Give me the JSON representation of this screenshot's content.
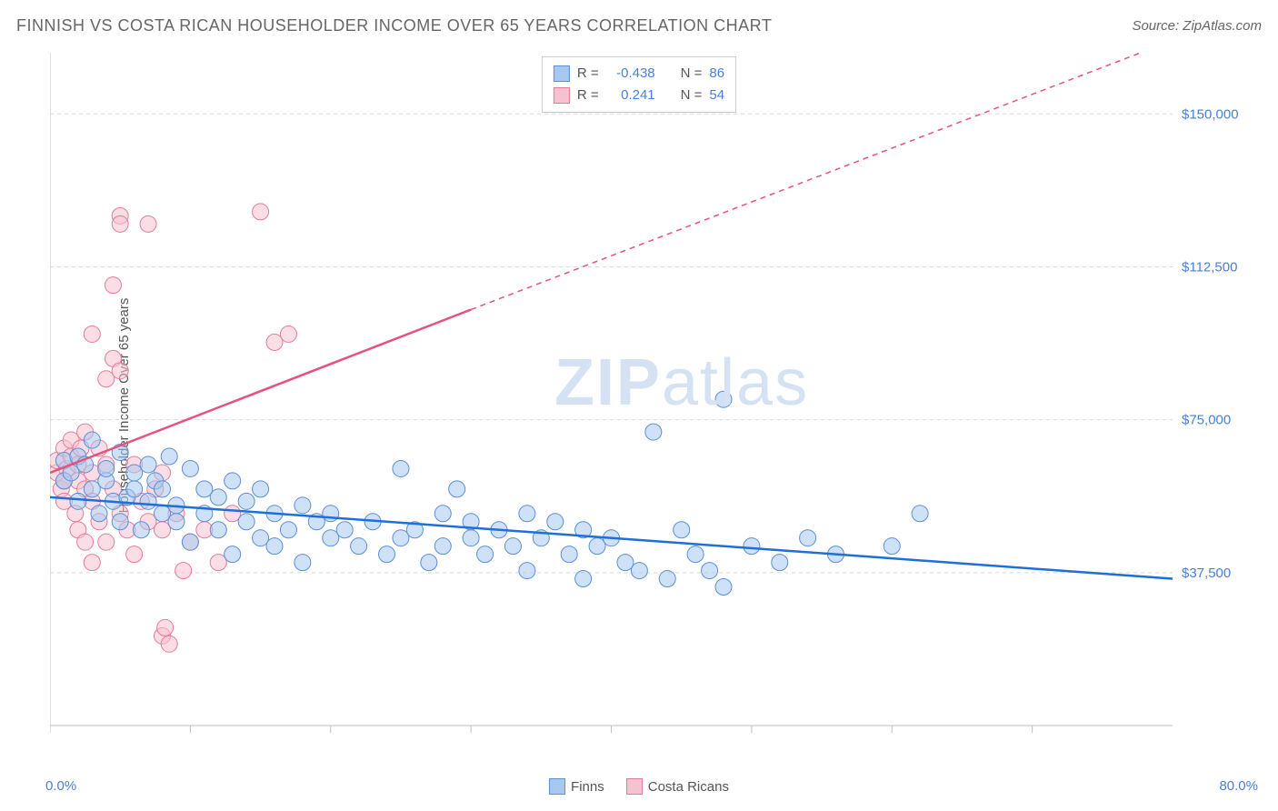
{
  "title": "FINNISH VS COSTA RICAN HOUSEHOLDER INCOME OVER 65 YEARS CORRELATION CHART",
  "source": "Source: ZipAtlas.com",
  "y_axis_label": "Householder Income Over 65 years",
  "watermark": {
    "zip": "ZIP",
    "atlas": "atlas"
  },
  "chart": {
    "type": "scatter",
    "xlim": [
      0,
      80
    ],
    "ylim": [
      0,
      165000
    ],
    "x_ticks": [
      0,
      10,
      20,
      30,
      40,
      50,
      60,
      70
    ],
    "x_tick_labels_shown": {
      "0": "0.0%",
      "80": "80.0%"
    },
    "y_ticks": [
      37500,
      75000,
      112500,
      150000
    ],
    "y_tick_labels": [
      "$37,500",
      "$75,000",
      "$112,500",
      "$150,000"
    ],
    "grid_color": "#d8d8d8",
    "axis_color": "#bfbfbf",
    "background_color": "#ffffff",
    "marker_radius": 9,
    "marker_opacity": 0.55,
    "line_width": 2.5
  },
  "series": {
    "finns": {
      "label": "Finns",
      "marker_fill": "#a8c8f0",
      "marker_stroke": "#5b8fd6",
      "line_color": "#1f6fd8",
      "R": "-0.438",
      "N": "86",
      "trend": {
        "x1": 0,
        "y1": 56000,
        "x2": 80,
        "y2": 36000
      },
      "points": [
        [
          1,
          65000
        ],
        [
          1,
          60000
        ],
        [
          1.5,
          62000
        ],
        [
          2,
          66000
        ],
        [
          2,
          55000
        ],
        [
          2.5,
          64000
        ],
        [
          3,
          58000
        ],
        [
          3,
          70000
        ],
        [
          3.5,
          52000
        ],
        [
          4,
          60000
        ],
        [
          4,
          63000
        ],
        [
          4.5,
          55000
        ],
        [
          5,
          67000
        ],
        [
          5,
          50000
        ],
        [
          5.5,
          56000
        ],
        [
          6,
          58000
        ],
        [
          6,
          62000
        ],
        [
          6.5,
          48000
        ],
        [
          7,
          64000
        ],
        [
          7,
          55000
        ],
        [
          7.5,
          60000
        ],
        [
          8,
          52000
        ],
        [
          8,
          58000
        ],
        [
          8.5,
          66000
        ],
        [
          9,
          50000
        ],
        [
          9,
          54000
        ],
        [
          10,
          63000
        ],
        [
          10,
          45000
        ],
        [
          11,
          58000
        ],
        [
          11,
          52000
        ],
        [
          12,
          56000
        ],
        [
          12,
          48000
        ],
        [
          13,
          60000
        ],
        [
          13,
          42000
        ],
        [
          14,
          55000
        ],
        [
          14,
          50000
        ],
        [
          15,
          46000
        ],
        [
          15,
          58000
        ],
        [
          16,
          52000
        ],
        [
          16,
          44000
        ],
        [
          17,
          48000
        ],
        [
          18,
          54000
        ],
        [
          18,
          40000
        ],
        [
          19,
          50000
        ],
        [
          20,
          46000
        ],
        [
          20,
          52000
        ],
        [
          21,
          48000
        ],
        [
          22,
          44000
        ],
        [
          23,
          50000
        ],
        [
          24,
          42000
        ],
        [
          25,
          63000
        ],
        [
          25,
          46000
        ],
        [
          26,
          48000
        ],
        [
          27,
          40000
        ],
        [
          28,
          52000
        ],
        [
          28,
          44000
        ],
        [
          29,
          58000
        ],
        [
          30,
          46000
        ],
        [
          30,
          50000
        ],
        [
          31,
          42000
        ],
        [
          32,
          48000
        ],
        [
          33,
          44000
        ],
        [
          34,
          52000
        ],
        [
          34,
          38000
        ],
        [
          35,
          46000
        ],
        [
          36,
          50000
        ],
        [
          37,
          42000
        ],
        [
          38,
          48000
        ],
        [
          38,
          36000
        ],
        [
          39,
          44000
        ],
        [
          40,
          46000
        ],
        [
          41,
          40000
        ],
        [
          42,
          38000
        ],
        [
          43,
          72000
        ],
        [
          44,
          36000
        ],
        [
          45,
          48000
        ],
        [
          46,
          42000
        ],
        [
          47,
          38000
        ],
        [
          48,
          34000
        ],
        [
          50,
          44000
        ],
        [
          52,
          40000
        ],
        [
          54,
          46000
        ],
        [
          56,
          42000
        ],
        [
          60,
          44000
        ],
        [
          62,
          52000
        ],
        [
          48,
          80000
        ]
      ]
    },
    "costa_ricans": {
      "label": "Costa Ricans",
      "marker_fill": "#f7c2d0",
      "marker_stroke": "#e57b9a",
      "line_color": "#e6527e",
      "R": "0.241",
      "N": "54",
      "trend_solid": {
        "x1": 0,
        "y1": 62000,
        "x2": 30,
        "y2": 102000
      },
      "trend_dashed": {
        "x1": 30,
        "y1": 102000,
        "x2": 80,
        "y2": 168000
      },
      "points": [
        [
          0.5,
          62000
        ],
        [
          0.5,
          65000
        ],
        [
          0.8,
          58000
        ],
        [
          1,
          68000
        ],
        [
          1,
          55000
        ],
        [
          1,
          60000
        ],
        [
          1.2,
          63000
        ],
        [
          1.5,
          66000
        ],
        [
          1.5,
          70000
        ],
        [
          1.8,
          52000
        ],
        [
          2,
          64000
        ],
        [
          2,
          60000
        ],
        [
          2,
          48000
        ],
        [
          2.2,
          68000
        ],
        [
          2.5,
          58000
        ],
        [
          2.5,
          45000
        ],
        [
          2.5,
          72000
        ],
        [
          3,
          96000
        ],
        [
          3,
          55000
        ],
        [
          3,
          62000
        ],
        [
          3,
          40000
        ],
        [
          3.5,
          50000
        ],
        [
          3.5,
          68000
        ],
        [
          4,
          64000
        ],
        [
          4,
          45000
        ],
        [
          4,
          85000
        ],
        [
          4.5,
          108000
        ],
        [
          4.5,
          58000
        ],
        [
          4.5,
          90000
        ],
        [
          5,
          87000
        ],
        [
          5,
          125000
        ],
        [
          5,
          123000
        ],
        [
          5,
          52000
        ],
        [
          5.5,
          48000
        ],
        [
          6,
          64000
        ],
        [
          6,
          42000
        ],
        [
          6.5,
          55000
        ],
        [
          7,
          123000
        ],
        [
          7,
          50000
        ],
        [
          7.5,
          58000
        ],
        [
          8,
          48000
        ],
        [
          8,
          62000
        ],
        [
          8,
          22000
        ],
        [
          8.2,
          24000
        ],
        [
          8.5,
          20000
        ],
        [
          9,
          52000
        ],
        [
          9.5,
          38000
        ],
        [
          10,
          45000
        ],
        [
          11,
          48000
        ],
        [
          12,
          40000
        ],
        [
          13,
          52000
        ],
        [
          15,
          126000
        ],
        [
          16,
          94000
        ],
        [
          17,
          96000
        ]
      ]
    }
  },
  "legend_top": {
    "rows": [
      {
        "swatch_fill": "#a8c8f0",
        "swatch_stroke": "#5b8fd6",
        "R_label": "R =",
        "R_val": "-0.438",
        "N_label": "N =",
        "N_val": "86"
      },
      {
        "swatch_fill": "#f7c2d0",
        "swatch_stroke": "#e57b9a",
        "R_label": "R =",
        "R_val": "0.241",
        "N_label": "N =",
        "N_val": "54"
      }
    ]
  },
  "legend_bottom": [
    {
      "swatch_fill": "#a8c8f0",
      "swatch_stroke": "#5b8fd6",
      "label": "Finns"
    },
    {
      "swatch_fill": "#f7c2d0",
      "swatch_stroke": "#e57b9a",
      "label": "Costa Ricans"
    }
  ]
}
